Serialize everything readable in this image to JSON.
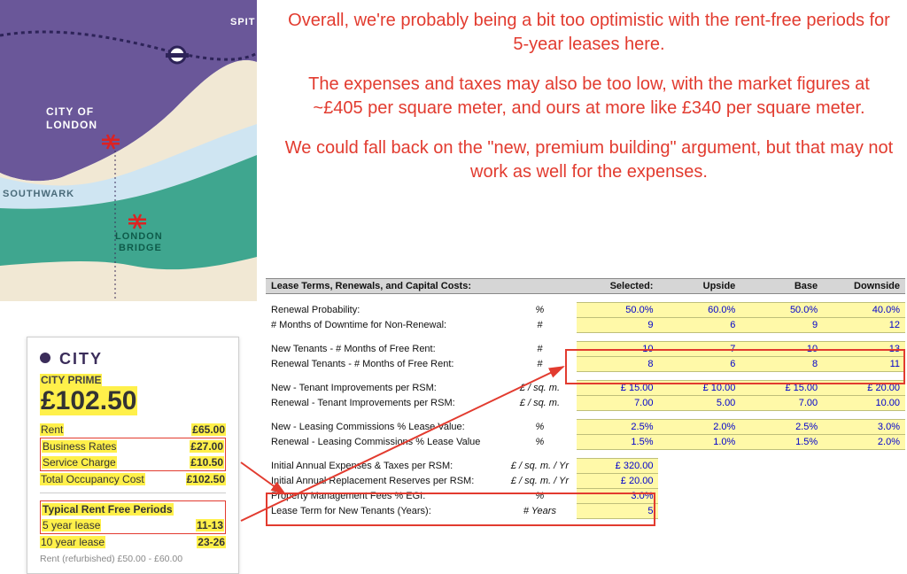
{
  "colors": {
    "accent_red": "#e23b2f",
    "highlight_yellow": "#fff04a",
    "cell_yellow": "#fff9a8",
    "value_blue": "#0000cc",
    "map_purple": "#6a5799",
    "map_teal": "#3fa68f",
    "map_cream": "#f1e8d4",
    "river_blue": "#cfe5f2"
  },
  "map": {
    "label_city": "CITY OF LONDON",
    "label_southwark": "SOUTHWARK",
    "label_london_bridge": "LONDON BRIDGE",
    "label_spit": "SPIT"
  },
  "city_card": {
    "heading": "CITY",
    "sub": "CITY PRIME",
    "price": "£102.50",
    "rows": [
      {
        "label": "Rent",
        "value": "£65.00"
      },
      {
        "label": "Business Rates",
        "value": "£27.00"
      },
      {
        "label": "Service Charge",
        "value": "£10.50"
      },
      {
        "label": "Total Occupancy Cost",
        "value": "£102.50"
      }
    ],
    "rentfree_title": "Typical Rent Free Periods",
    "rentfree_rows": [
      {
        "label": "5 year lease",
        "value": "11-13"
      },
      {
        "label": "10 year lease",
        "value": "23-26"
      }
    ],
    "footer": "Rent (refurbished) £50.00 - £60.00"
  },
  "commentary": {
    "p1": "Overall, we're probably being a bit too optimistic with the rent-free periods for 5-year leases here.",
    "p2": "The expenses and taxes may also be too low, with the market figures at ~£405 per square meter, and ours at more like £340 per square meter.",
    "p3": "We could fall back on the \"new, premium building\" argument, but that may not work as well for the expenses."
  },
  "sheet": {
    "header": {
      "title": "Lease Terms, Renewals, and Capital Costs:",
      "c_selected": "Selected:",
      "c_upside": "Upside",
      "c_base": "Base",
      "c_downside": "Downside"
    },
    "rows": [
      {
        "label": "Renewal Probability:",
        "unit": "%",
        "sel": "50.0%",
        "up": "60.0%",
        "base": "50.0%",
        "down": "40.0%"
      },
      {
        "label": "# Months of Downtime for Non-Renewal:",
        "unit": "#",
        "sel": "9",
        "up": "6",
        "base": "9",
        "down": "12"
      },
      {
        "spacer": true
      },
      {
        "label": "New Tenants - # Months of Free Rent:",
        "unit": "#",
        "sel": "10",
        "up": "7",
        "base": "10",
        "down": "13"
      },
      {
        "label": "Renewal Tenants - # Months of Free Rent:",
        "unit": "#",
        "sel": "8",
        "up": "6",
        "base": "8",
        "down": "11"
      },
      {
        "spacer": true
      },
      {
        "label": "New - Tenant Improvements per RSM:",
        "unit": "£ / sq. m.",
        "sel": "£        15.00",
        "up": "£        10.00",
        "base": "£        15.00",
        "down": "£        20.00"
      },
      {
        "label": "Renewal - Tenant Improvements per RSM:",
        "unit": "£ / sq. m.",
        "sel": "7.00",
        "up": "5.00",
        "base": "7.00",
        "down": "10.00"
      },
      {
        "spacer": true
      },
      {
        "label": "New - Leasing Commissions % Lease Value:",
        "unit": "%",
        "sel": "2.5%",
        "up": "2.0%",
        "base": "2.5%",
        "down": "3.0%"
      },
      {
        "label": "Renewal - Leasing Commissions % Lease Value",
        "unit": "%",
        "sel": "1.5%",
        "up": "1.0%",
        "base": "1.5%",
        "down": "2.0%"
      },
      {
        "spacer": true
      },
      {
        "label": "Initial Annual Expenses & Taxes per RSM:",
        "unit": "£ / sq. m. / Yr",
        "sel": "£      320.00",
        "up": "",
        "base": "",
        "down": ""
      },
      {
        "label": "Initial Annual Replacement Reserves per RSM:",
        "unit": "£ / sq. m. / Yr",
        "sel": "£        20.00",
        "up": "",
        "base": "",
        "down": ""
      },
      {
        "label": "Property Management Fees % EGI:",
        "unit": "%",
        "sel": "3.0%",
        "up": "",
        "base": "",
        "down": ""
      },
      {
        "label": "Lease Term for New Tenants (Years):",
        "unit": "# Years",
        "sel": "5",
        "up": "",
        "base": "",
        "down": ""
      }
    ]
  }
}
